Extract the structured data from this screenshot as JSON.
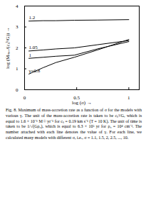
{
  "chart_data": {
    "type": "line",
    "x_label": "log (σ)",
    "y_label": "log (Ṁₘₐₓ/(cₛ³/G))",
    "caption": "Fig. 8. Maximum of mass-accretion rate as a function of σ for the models with various γ. The unit of the mass-accretion rate is taken to be cₛ³/G, which is equal to 1.6 × 10⁻⁶ M☉ yr⁻¹ for cₛ = 0.19 km s⁻¹ (T = 10 K). The unit of time is taken to be 1/√(Gρ₀), which is equal to 6.3 × 10⁵ yr for ρ₀ = 10⁴ cm⁻³. The number attached with each line denotes the value of γ. For each line, we calculated many models with different σ, i.e., σ = 1.1, 1.5, 2, 2.5, ..., 10.",
    "x": [
      0.041,
      0.176,
      0.301,
      0.477,
      0.699,
      1.0
    ],
    "series": [
      {
        "name": "1.2",
        "color": "#000000",
        "values": [
          3.28,
          3.3,
          3.3,
          3.32,
          3.33,
          3.35
        ]
      },
      {
        "name": "1.05",
        "color": "#000000",
        "values": [
          1.85,
          1.9,
          1.95,
          2.0,
          2.15,
          2.35
        ]
      },
      {
        "name": "1",
        "color": "#000000",
        "values": [
          1.5,
          1.55,
          1.6,
          1.65,
          1.95,
          2.3
        ]
      },
      {
        "name": "γ=0.8",
        "color": "#000000",
        "values": [
          0.75,
          1.05,
          1.3,
          1.55,
          1.9,
          2.4
        ]
      }
    ],
    "xlim": [
      0,
      1.1
    ],
    "xticks": [
      0,
      0.5,
      1
    ],
    "ylim": [
      0,
      4
    ],
    "yticks": [
      0,
      1,
      2,
      3,
      4
    ],
    "grid": false
  }
}
